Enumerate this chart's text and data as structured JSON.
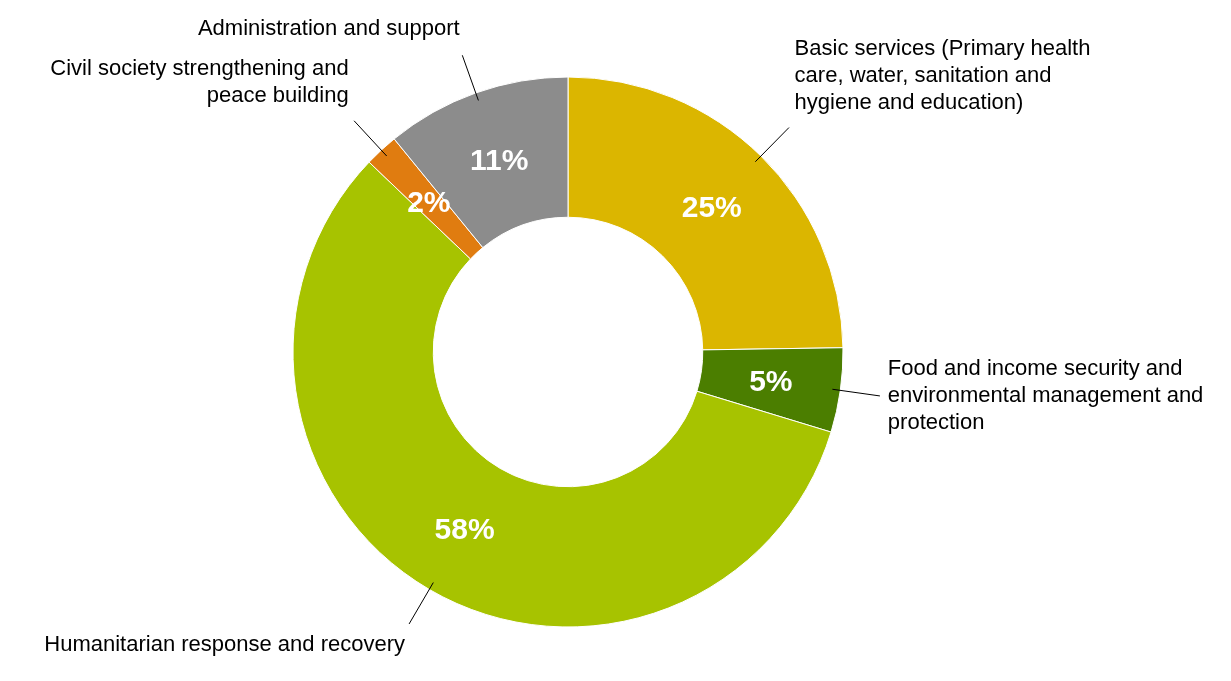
{
  "chart_data": {
    "type": "donut",
    "categories": [
      "Basic services (Primary health care, water, sanitation and hygiene and education)",
      "Food and income security and environmental management and protection",
      "Humanitarian response and recovery",
      "Civil society strengthening and peace building",
      "Administration and support"
    ],
    "values": [
      25,
      5,
      58,
      2,
      11
    ],
    "value_labels": [
      "25%",
      "5%",
      "58%",
      "2%",
      "11%"
    ],
    "colors": [
      "#dbb600",
      "#4b7e00",
      "#a7c300",
      "#e07c10",
      "#8c8c8c"
    ],
    "legend": false
  }
}
